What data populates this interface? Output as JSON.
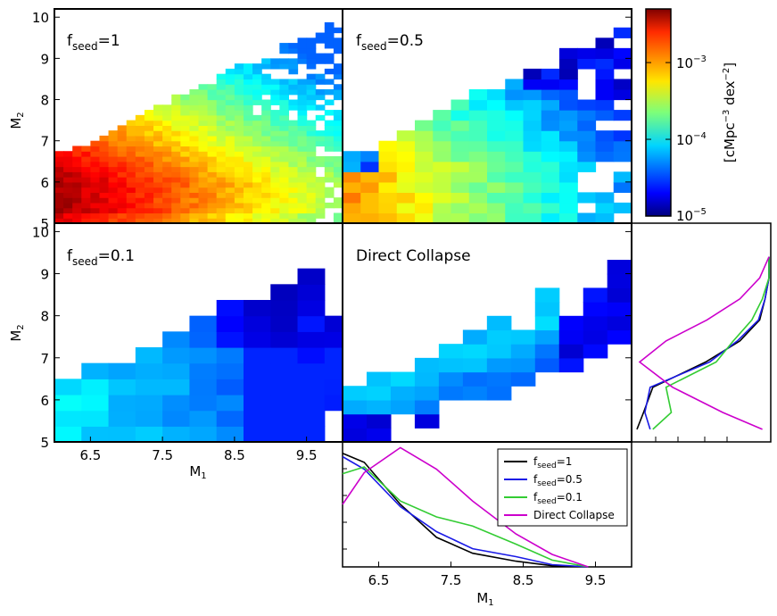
{
  "figure": {
    "x_label": "M",
    "x_label_sub": "1",
    "y_label": "M",
    "y_label_sub": "2",
    "colorbar_label": "[cMpc^-3 dex^-2]",
    "colorbar_label_parts": {
      "open": "[cMpc",
      "exp1": "−3",
      "mid": " dex",
      "exp2": "−2",
      "close": "]"
    },
    "colorbar_ticks": [
      {
        "label": "10",
        "exp": "−3",
        "value": 0.001
      },
      {
        "label": "10",
        "exp": "−4",
        "value": 0.0001
      },
      {
        "label": "10",
        "exp": "−5",
        "value": 1e-05
      }
    ]
  },
  "chart_data": [
    {
      "id": "panel-fseed-1",
      "type": "heatmap",
      "title": "fseed=1",
      "title_parts": {
        "main": "f",
        "sub": "seed",
        "rest": "=1"
      },
      "x_range": [
        6.0,
        10.0
      ],
      "y_range": [
        5.0,
        10.2
      ],
      "bins": 0.125,
      "y_ticks": [
        "5",
        "6",
        "7",
        "8",
        "9",
        "10"
      ],
      "description_value_range": [
        1e-05,
        0.005
      ]
    },
    {
      "id": "panel-fseed-0.5",
      "type": "heatmap",
      "title": "fseed=0.5",
      "title_parts": {
        "main": "f",
        "sub": "seed",
        "rest": "=0.5"
      },
      "x_range": [
        6.0,
        10.0
      ],
      "y_range": [
        5.0,
        10.2
      ],
      "bins": 0.25
    },
    {
      "id": "panel-fseed-0.1",
      "type": "heatmap",
      "title": "fseed=0.1",
      "title_parts": {
        "main": "f",
        "sub": "seed",
        "rest": "=0.1"
      },
      "x_range": [
        6.0,
        10.0
      ],
      "y_range": [
        5.0,
        10.2
      ],
      "bins": 0.375,
      "x_ticks": [
        "6.5",
        "7.5",
        "8.5",
        "9.5"
      ],
      "y_ticks": [
        "5",
        "6",
        "7",
        "8",
        "9",
        "10"
      ]
    },
    {
      "id": "panel-direct-collapse",
      "type": "heatmap",
      "title": "Direct Collapse",
      "x_range": [
        6.0,
        10.0
      ],
      "y_range": [
        5.0,
        10.2
      ],
      "bins": 0.333
    },
    {
      "id": "marginal-m1",
      "type": "line",
      "x_range": [
        6.0,
        10.0
      ],
      "x_ticks": [
        "6.5",
        "7.5",
        "8.5",
        "9.5"
      ],
      "x": [
        6.0,
        6.3,
        6.8,
        7.3,
        7.8,
        8.4,
        8.9,
        9.4
      ],
      "series": [
        {
          "name": "fseed=1",
          "color": "#000000",
          "values": [
            1.0,
            0.92,
            0.55,
            0.26,
            0.12,
            0.05,
            0.01,
            0.0
          ]
        },
        {
          "name": "fseed=0.5",
          "color": "#1a1ae6",
          "values": [
            0.97,
            0.86,
            0.53,
            0.31,
            0.16,
            0.09,
            0.02,
            0.0
          ]
        },
        {
          "name": "fseed=0.1",
          "color": "#33cc33",
          "values": [
            0.82,
            0.88,
            0.58,
            0.44,
            0.36,
            0.2,
            0.06,
            0.0
          ]
        },
        {
          "name": "Direct Collapse",
          "color": "#cc00cc",
          "values": [
            0.55,
            0.83,
            1.05,
            0.86,
            0.58,
            0.29,
            0.11,
            0.0
          ]
        }
      ],
      "legend": [
        {
          "main": "f",
          "sub": "seed",
          "rest": "=1",
          "color": "#000000"
        },
        {
          "main": "f",
          "sub": "seed",
          "rest": "=0.5",
          "color": "#1a1ae6"
        },
        {
          "main": "f",
          "sub": "seed",
          "rest": "=0.1",
          "color": "#33cc33"
        },
        {
          "main": "Direct Collapse",
          "sub": "",
          "rest": "",
          "color": "#cc00cc"
        }
      ],
      "legend_position": "top-right"
    },
    {
      "id": "marginal-m2",
      "type": "line",
      "orientation": "horizontal",
      "y_range": [
        5.0,
        10.2
      ],
      "series": [
        {
          "name": "fseed=1",
          "color": "#000000",
          "y": [
            5.3,
            5.7,
            6.3,
            6.9,
            7.4,
            7.9,
            8.4,
            8.9,
            9.4
          ],
          "values": [
            0.0,
            0.05,
            0.12,
            0.52,
            0.78,
            0.93,
            0.97,
            1.0,
            1.0
          ]
        },
        {
          "name": "fseed=0.5",
          "color": "#1a1ae6",
          "y": [
            5.3,
            5.7,
            6.3,
            6.9,
            7.4,
            7.9,
            8.4,
            8.9,
            9.4
          ],
          "values": [
            0.1,
            0.06,
            0.1,
            0.55,
            0.76,
            0.92,
            0.97,
            1.0,
            1.0
          ]
        },
        {
          "name": "fseed=0.1",
          "color": "#33cc33",
          "y": [
            5.3,
            5.7,
            6.3,
            6.9,
            7.4,
            7.9,
            8.4,
            8.9,
            9.4
          ],
          "values": [
            0.12,
            0.26,
            0.22,
            0.6,
            0.73,
            0.87,
            0.95,
            1.0,
            1.0
          ]
        },
        {
          "name": "Direct Collapse",
          "color": "#cc00cc",
          "y": [
            5.3,
            5.7,
            6.3,
            6.9,
            7.4,
            7.9,
            8.4,
            8.9,
            9.4
          ],
          "values": [
            0.95,
            0.65,
            0.27,
            0.02,
            0.22,
            0.53,
            0.78,
            0.93,
            1.0
          ]
        }
      ]
    }
  ]
}
